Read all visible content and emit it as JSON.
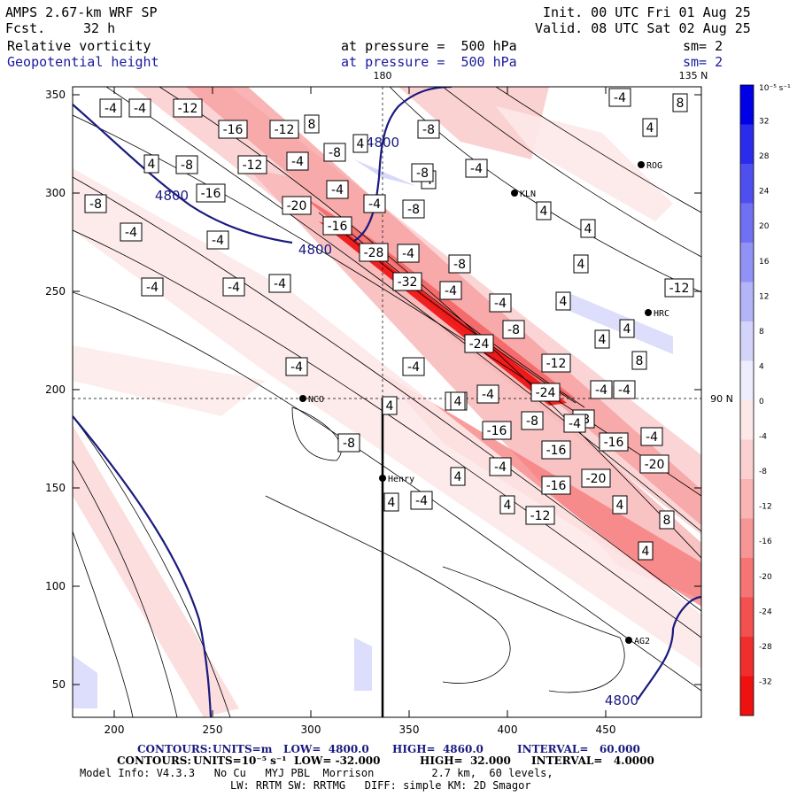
{
  "header": {
    "model": "AMPS 2.67-km WRF SP",
    "fcst_label": "Fcst.",
    "fcst_value": "32 h",
    "init": "Init. 00 UTC Fri 01 Aug 25",
    "valid": "Valid. 08 UTC Sat 02 Aug 25",
    "field1_name": "Relative vorticity",
    "field1_level": "at pressure =  500 hPa",
    "field1_sm": "sm= 2",
    "field2_name": "Geopotential height",
    "field2_level": "at pressure =  500 hPa",
    "field2_sm": "sm= 2"
  },
  "map": {
    "x_ticks": [
      "200",
      "250",
      "300",
      "350",
      "400",
      "450"
    ],
    "y_ticks": [
      "350",
      "300",
      "250",
      "200",
      "150",
      "100",
      "50"
    ],
    "meridian_180": "180",
    "meridian_135n": "135 N",
    "meridian_90n": "90 N",
    "stations": [
      {
        "name": "ROG"
      },
      {
        "name": "KLN"
      },
      {
        "name": "HRC"
      },
      {
        "name": "NCO"
      },
      {
        "name": "Henry"
      },
      {
        "name": "AG2"
      }
    ],
    "height_labels": [
      "4800",
      "4800",
      "4800",
      "4800"
    ],
    "vort_labels": [
      "-4",
      "-4",
      "-12",
      "-16",
      "-12",
      "-8",
      "8",
      "4",
      "-8",
      "-16",
      "-12",
      "-4",
      "4",
      "-8",
      "-4",
      "-4",
      "-20",
      "-16",
      "4",
      "-28",
      "-8",
      "4",
      "-8",
      "-4",
      "-4",
      "-4",
      "-4",
      "-32",
      "-8",
      "-4",
      "-24",
      "-8",
      "-4",
      "-4",
      "-4",
      "-12",
      "-4",
      "-24",
      "-8",
      "-4",
      "-4",
      "-16",
      "-8",
      "-16",
      "-8",
      "-4",
      "-20",
      "-16",
      "-4",
      "-4",
      "-4",
      "-12",
      "-20",
      "-16",
      "4",
      "8",
      "4",
      "4",
      "4",
      "4",
      "4",
      "4",
      "4",
      "8",
      "8",
      "4",
      "-4",
      "-4",
      "-8",
      "4",
      "4",
      "4",
      "-4",
      "-8",
      "-4",
      "4",
      "4",
      "-12"
    ],
    "colorbar": {
      "unit": "10⁻⁵ s⁻¹",
      "labels": [
        "32",
        "28",
        "24",
        "20",
        "16",
        "12",
        "8",
        "4",
        "0",
        "-4",
        "-8",
        "-12",
        "-16",
        "-20",
        "-24",
        "-28",
        "-32"
      ],
      "colors": [
        "#0000e6",
        "#2b2bec",
        "#4f4ff0",
        "#7070f3",
        "#9292f6",
        "#b4b4f8",
        "#d4d4fb",
        "#ededfd",
        "#fde8e8",
        "#fbd0d0",
        "#f9b4b4",
        "#f79696",
        "#f57474",
        "#f35050",
        "#f12e2e",
        "#ef1010"
      ]
    }
  },
  "footer": {
    "line1_label": "CONTOURS:",
    "line1_units": "UNITS=m",
    "line1_low": "LOW=  4800.0",
    "line1_high": "HIGH=  4860.0",
    "line1_interval": "INTERVAL=   60.000",
    "line2_label": "CONTOURS:",
    "line2_units": "UNITS=10⁻⁵ s⁻¹",
    "line2_low": "LOW= -32.000",
    "line2_high": "HIGH=  32.000",
    "line2_interval": "INTERVAL=   4.0000",
    "line3": "Model Info: V4.3.3   No Cu   MYJ PBL  Morrison         2.7 km,  60 levels,",
    "line4": "LW: RRTM SW: RRTMG   DIFF: simple KM: 2D Smagor"
  }
}
